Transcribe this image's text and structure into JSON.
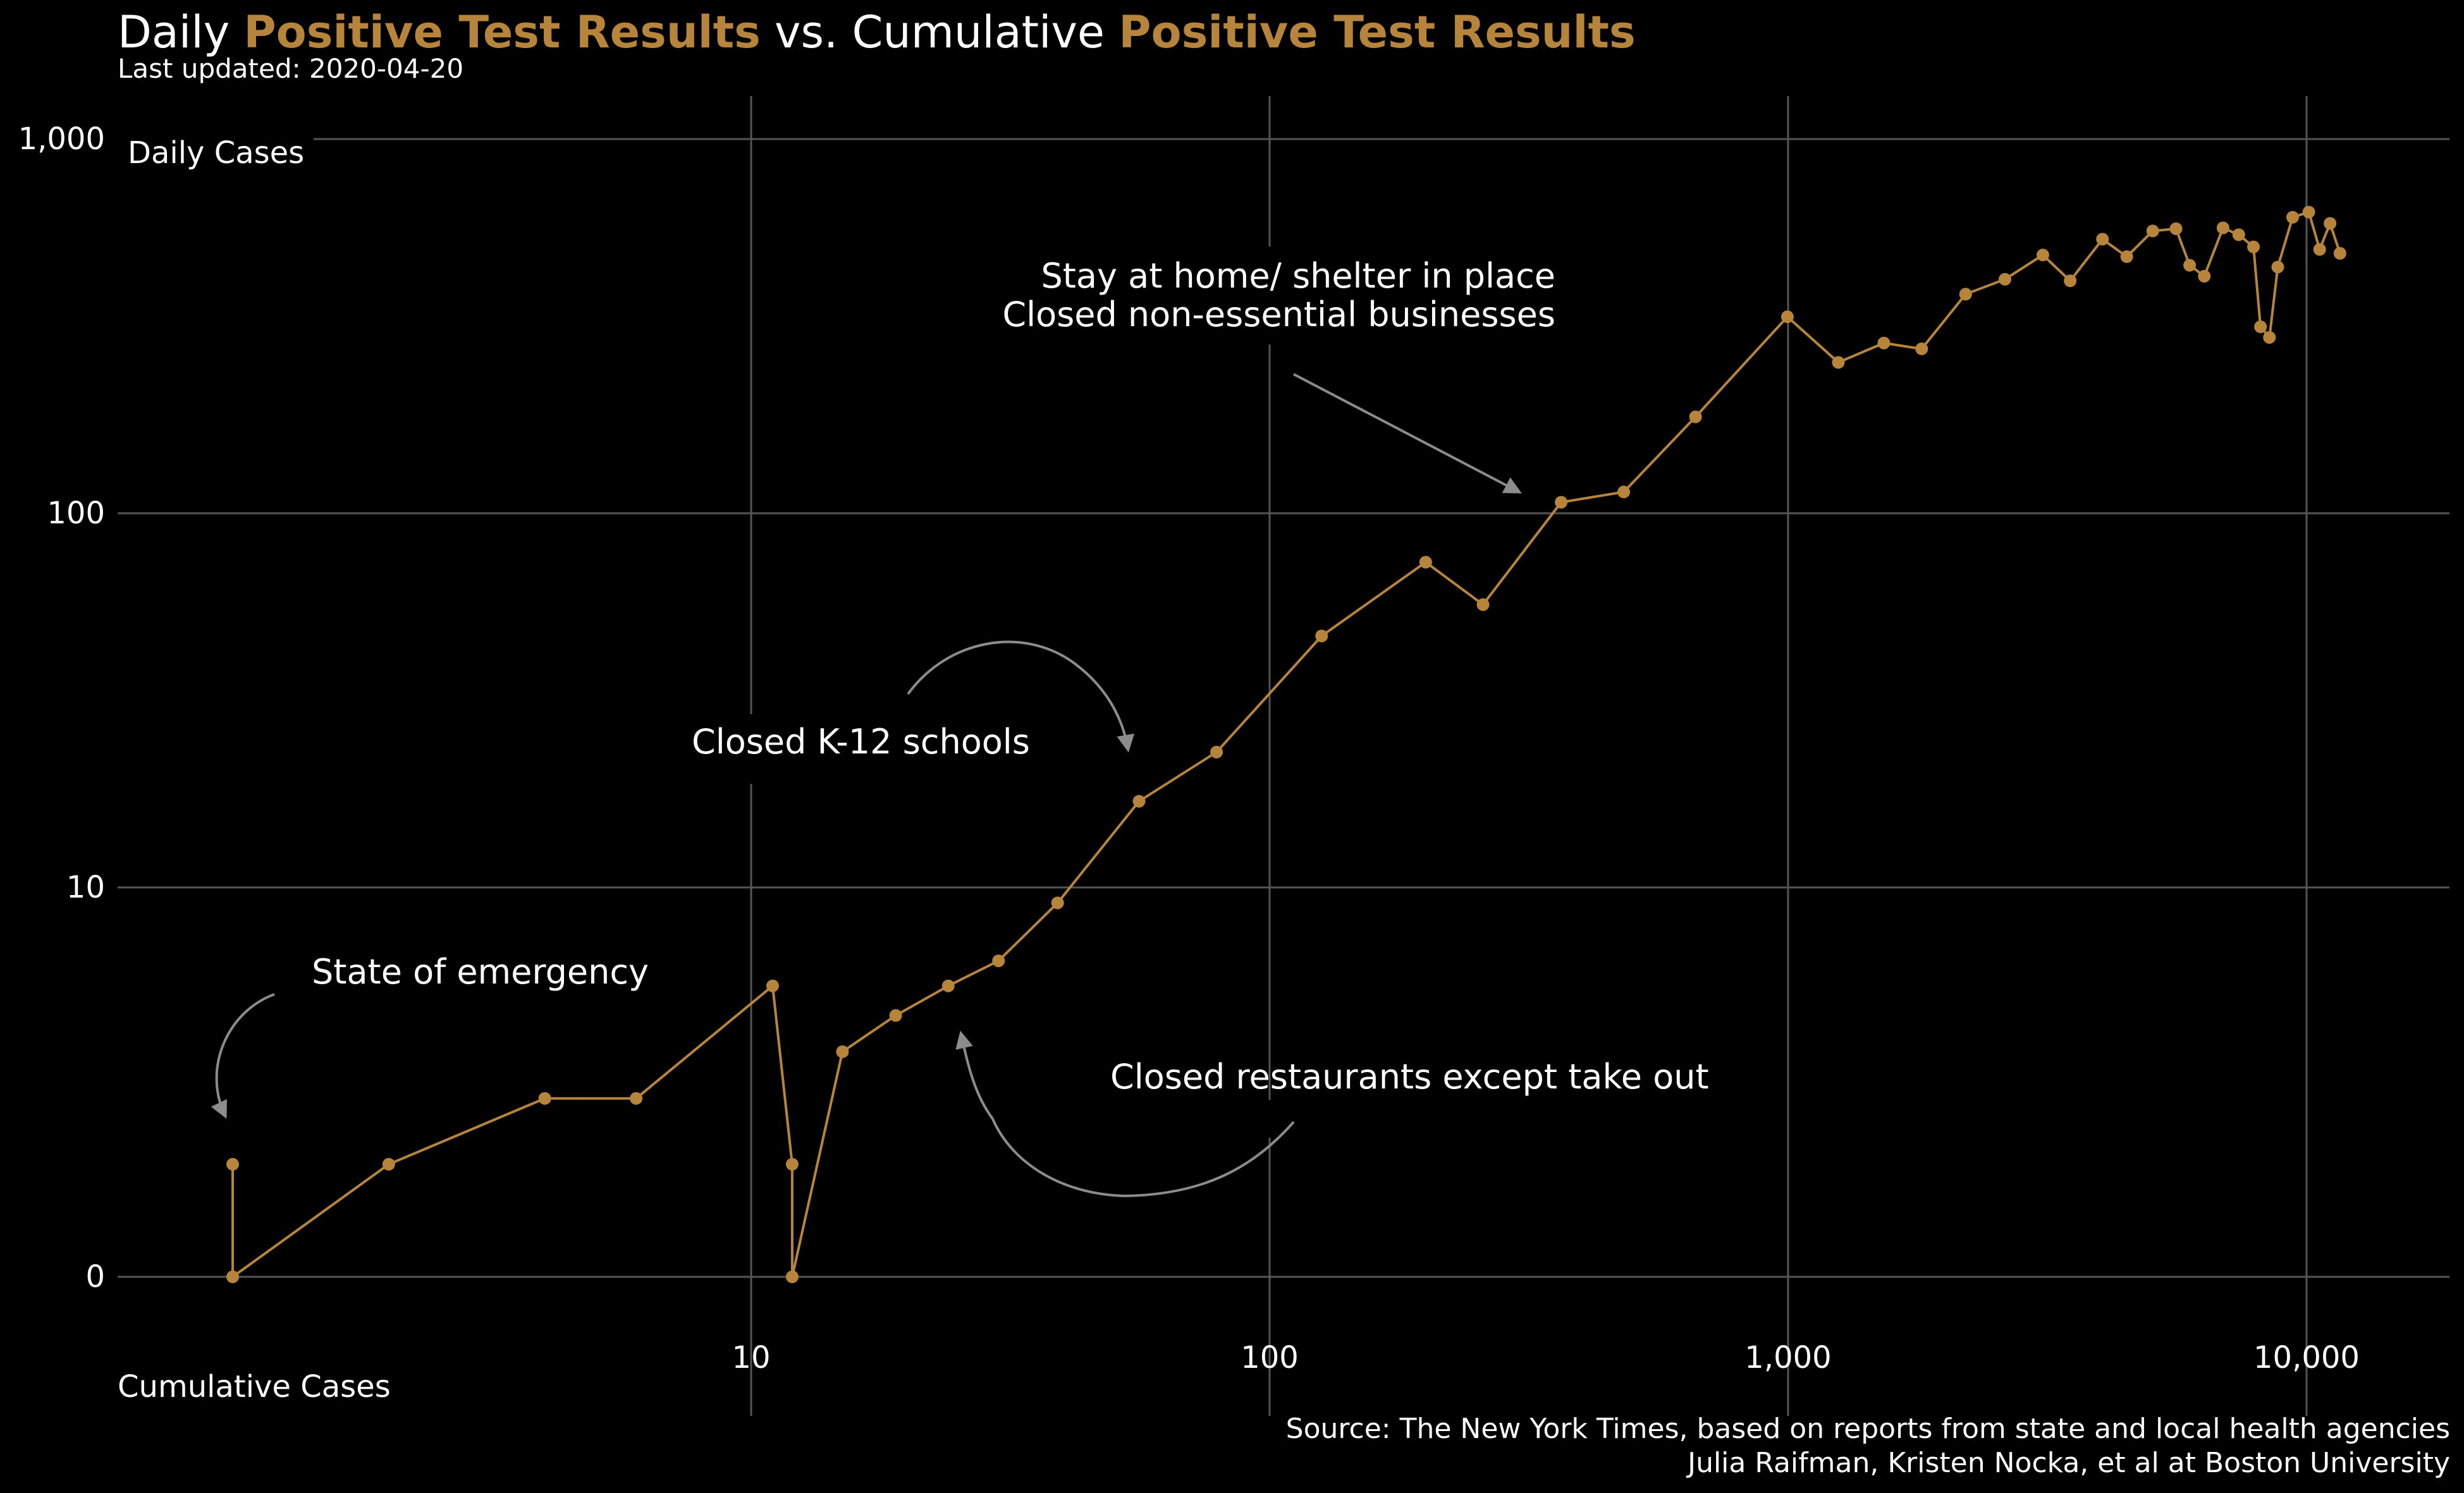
{
  "title": {
    "part1": "Daily ",
    "part2": "Positive Test Results",
    "part3": " vs. Cumulative ",
    "part4": "Positive Test Results"
  },
  "subtitle": "Last updated: 2020-04-20",
  "source_lines": [
    "Source: The New York Times, based on reports from state and local health agencies",
    "Julia Raifman,  Kristen Nocka, et al at Boston University"
  ],
  "colors": {
    "accent": "#b6843a",
    "grid": "#555555",
    "arrow": "#8c8c8c",
    "text": "#ffffff",
    "background": "#000000"
  },
  "chart_data": {
    "type": "line",
    "xlabel": "Cumulative Cases",
    "ylabel": "Daily Cases",
    "x_scale": "log",
    "y_scale": "pseudo-log",
    "xlim": [
      1,
      15000
    ],
    "ylim": [
      0,
      1400
    ],
    "x_ticks": [
      10,
      100,
      1000,
      10000
    ],
    "x_tick_labels": [
      "10",
      "100",
      "1,000",
      "10,000"
    ],
    "y_ticks": [
      0,
      10,
      100,
      1000
    ],
    "y_tick_labels": [
      "0",
      "10",
      "100",
      "1,000"
    ],
    "grid": true,
    "series": [
      {
        "points": [
          [
            1,
            1
          ],
          [
            1,
            0
          ],
          [
            2,
            1
          ],
          [
            4,
            2
          ],
          [
            6,
            2
          ],
          [
            11,
            5
          ],
          [
            12,
            1
          ],
          [
            12,
            0
          ],
          [
            15,
            3
          ],
          [
            19,
            4
          ],
          [
            24,
            5
          ],
          [
            30,
            6
          ],
          [
            39,
            9
          ],
          [
            56,
            17
          ],
          [
            79,
            23
          ],
          [
            126,
            47
          ],
          [
            200,
            74
          ],
          [
            258,
            57
          ],
          [
            365,
            107
          ],
          [
            482,
            114
          ],
          [
            663,
            181
          ],
          [
            997,
            335
          ],
          [
            1250,
            253
          ],
          [
            1530,
            285
          ],
          [
            1810,
            275
          ],
          [
            2200,
            385
          ],
          [
            2620,
            422
          ],
          [
            3100,
            490
          ],
          [
            3500,
            418
          ],
          [
            4040,
            540
          ],
          [
            4500,
            485
          ],
          [
            5050,
            568
          ],
          [
            5600,
            576
          ],
          [
            5950,
            460
          ],
          [
            6350,
            430
          ],
          [
            6900,
            579
          ],
          [
            7400,
            555
          ],
          [
            7900,
            515
          ],
          [
            8150,
            315
          ],
          [
            8480,
            295
          ],
          [
            8800,
            455
          ],
          [
            9400,
            618
          ],
          [
            10100,
            638
          ],
          [
            10600,
            507
          ],
          [
            11100,
            595
          ],
          [
            11600,
            495
          ]
        ]
      }
    ],
    "annotations": [
      "State of emergency",
      "Closed K-12 schools",
      "Closed restaurants except take out",
      "Stay at home/ shelter in place",
      "Closed non-essential businesses"
    ]
  }
}
